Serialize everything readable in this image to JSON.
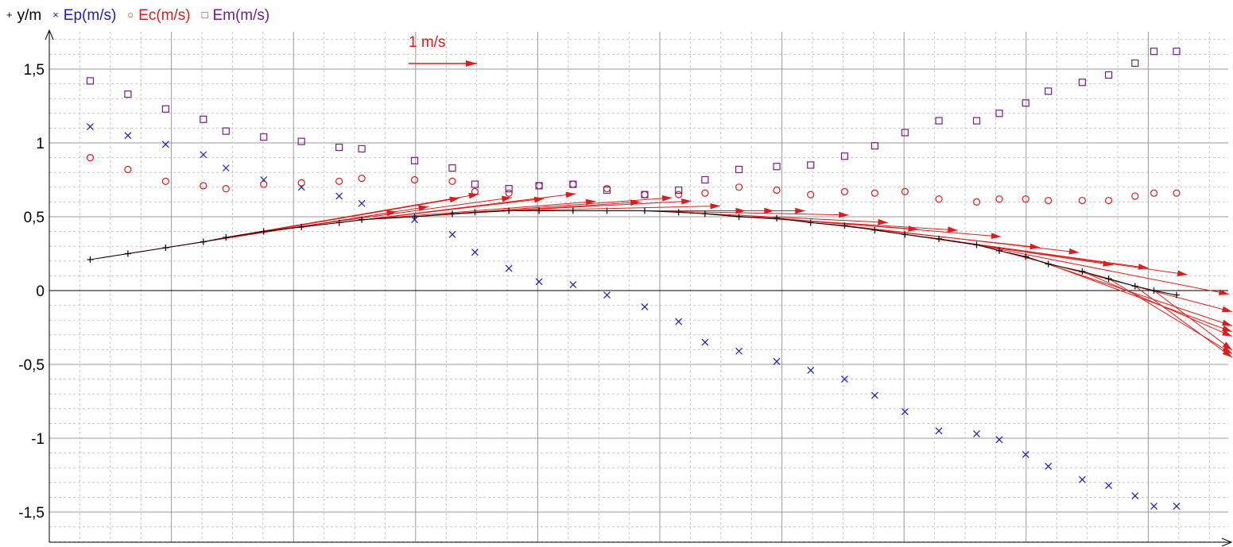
{
  "legend": {
    "items": [
      {
        "symbol": "+",
        "label": "y/m",
        "color": "#000000"
      },
      {
        "symbol": "×",
        "label": "Ep(m/s)",
        "color": "#1a1acc"
      },
      {
        "symbol": "○",
        "label": "Ec(m/s)",
        "color": "#e01a1a"
      },
      {
        "symbol": "□",
        "label": "Em(m/s)",
        "color": "#7a1a8c"
      }
    ]
  },
  "scale_arrow": {
    "label": "1 m/s",
    "color": "#e01a1a"
  },
  "chart_data": {
    "type": "scatter",
    "ylim": [
      -1.72,
      1.72
    ],
    "xlim": [
      0,
      3.0
    ],
    "grid": true,
    "y_ticks": [
      1.5,
      1.0,
      0.5,
      0,
      -0.5,
      -1.0,
      -1.5
    ],
    "y_tick_labels": [
      "1,5",
      "1",
      "0,5",
      "0",
      "-0,5",
      "-1",
      "-1,5"
    ],
    "x": [
      0.1,
      0.2,
      0.3,
      0.4,
      0.46,
      0.56,
      0.66,
      0.76,
      0.82,
      0.96,
      1.06,
      1.12,
      1.21,
      1.29,
      1.38,
      1.47,
      1.57,
      1.66,
      1.73,
      1.82,
      1.92,
      2.01,
      2.1,
      2.18,
      2.26,
      2.35,
      2.45,
      2.51,
      2.58,
      2.64,
      2.73,
      2.8,
      2.87,
      2.92,
      2.98
    ],
    "series": [
      {
        "name": "y/m",
        "color": "#000000",
        "marker": "plus",
        "values": [
          0.21,
          0.25,
          0.29,
          0.33,
          0.36,
          0.4,
          0.43,
          0.46,
          0.48,
          0.5,
          0.52,
          0.53,
          0.54,
          0.54,
          0.54,
          0.54,
          0.54,
          0.53,
          0.52,
          0.5,
          0.49,
          0.46,
          0.44,
          0.41,
          0.38,
          0.35,
          0.31,
          0.27,
          0.23,
          0.18,
          0.13,
          0.08,
          0.03,
          0.0,
          -0.03
        ]
      },
      {
        "name": "Ep(m/s)",
        "color": "#1a1acc",
        "marker": "x",
        "values": [
          1.11,
          1.05,
          0.99,
          0.92,
          0.83,
          0.75,
          0.7,
          0.64,
          0.59,
          0.48,
          0.38,
          0.26,
          0.15,
          0.06,
          0.04,
          -0.03,
          -0.11,
          -0.21,
          -0.35,
          -0.41,
          -0.48,
          -0.54,
          -0.6,
          -0.71,
          -0.82,
          -0.95,
          -0.97,
          -1.01,
          -1.11,
          -1.19,
          -1.28,
          -1.32,
          -1.39,
          -1.46,
          -1.46
        ]
      },
      {
        "name": "Ec(m/s)",
        "color": "#e01a1a",
        "marker": "circle",
        "values": [
          0.9,
          0.82,
          0.74,
          0.71,
          0.69,
          0.72,
          0.73,
          0.74,
          0.76,
          0.75,
          0.74,
          0.67,
          0.66,
          0.71,
          0.72,
          0.69,
          0.65,
          0.65,
          0.66,
          0.7,
          0.68,
          0.65,
          0.67,
          0.66,
          0.67,
          0.62,
          0.6,
          0.62,
          0.62,
          0.61,
          0.61,
          0.61,
          0.64,
          0.66,
          0.66
        ]
      },
      {
        "name": "Em(m/s)",
        "color": "#7a1a8c",
        "marker": "square",
        "values": [
          1.42,
          1.33,
          1.23,
          1.16,
          1.08,
          1.04,
          1.01,
          0.97,
          0.96,
          0.88,
          0.83,
          0.72,
          0.69,
          0.71,
          0.72,
          0.68,
          0.65,
          0.68,
          0.75,
          0.82,
          0.84,
          0.85,
          0.91,
          0.98,
          1.07,
          1.15,
          1.15,
          1.2,
          1.27,
          1.35,
          1.41,
          1.46,
          1.54,
          1.62,
          1.62
        ]
      }
    ]
  }
}
